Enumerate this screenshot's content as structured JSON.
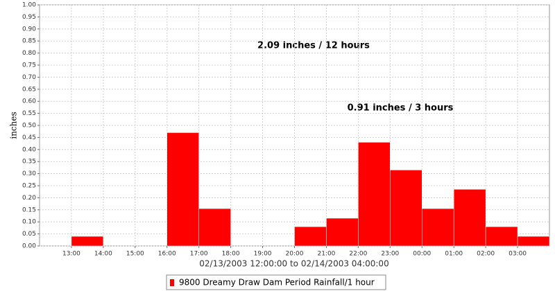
{
  "chart_data": {
    "type": "bar",
    "ylabel": "inches",
    "xlabel": "02/13/2003 12:00:00 to 02/14/2003 04:00:00",
    "xtick_labels": [
      "13:00",
      "14:00",
      "15:00",
      "16:00",
      "17:00",
      "18:00",
      "19:00",
      "20:00",
      "21:00",
      "22:00",
      "23:00",
      "00:00",
      "01:00",
      "02:00",
      "03:00"
    ],
    "series": [
      {
        "name": "9800 Dreamy Draw Dam Period Rainfall/1 hour",
        "color": "#ff0000",
        "values": [
          0,
          0.04,
          0,
          0,
          0.47,
          0.155,
          0,
          0,
          0.08,
          0.115,
          0.43,
          0.315,
          0.155,
          0.235,
          0.08,
          0.04
        ]
      }
    ],
    "annotations": [
      "2.09 inches / 12 hours",
      "0.91 inches / 3 hours"
    ],
    "ylim": [
      0,
      1
    ],
    "yticks": [
      {
        "value": 0,
        "label": "0.00"
      },
      {
        "value": 0.05,
        "label": "0.05"
      },
      {
        "value": 0.1,
        "label": "0.10"
      },
      {
        "value": 0.15,
        "label": "0.15"
      },
      {
        "value": 0.2,
        "label": "0.20"
      },
      {
        "value": 0.25,
        "label": "0.25"
      },
      {
        "value": 0.3,
        "label": "0.30"
      },
      {
        "value": 0.35,
        "label": "0.35"
      },
      {
        "value": 0.4,
        "label": "0.40"
      },
      {
        "value": 0.45,
        "label": "0.45"
      },
      {
        "value": 0.5,
        "label": "0.50"
      },
      {
        "value": 0.55,
        "label": "0.55"
      },
      {
        "value": 0.6,
        "label": "0.60"
      },
      {
        "value": 0.65,
        "label": "0.65"
      },
      {
        "value": 0.7,
        "label": "0.70"
      },
      {
        "value": 0.75,
        "label": "0.75"
      },
      {
        "value": 0.8,
        "label": "0.80"
      },
      {
        "value": 0.85,
        "label": "0.85"
      },
      {
        "value": 0.9,
        "label": "0.90"
      },
      {
        "value": 0.95,
        "label": "0.95"
      },
      {
        "value": 1,
        "label": "1.00"
      }
    ],
    "grid": true
  }
}
